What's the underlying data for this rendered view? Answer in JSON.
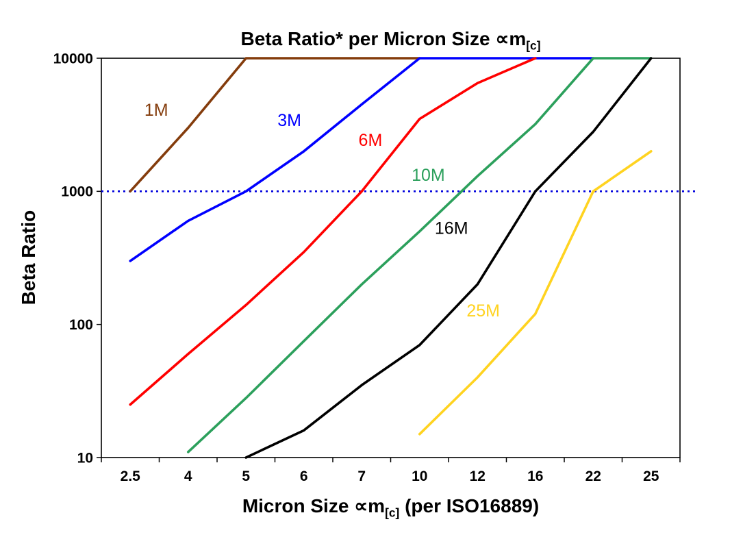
{
  "chart_data": {
    "type": "line",
    "title": {
      "text": "Beta Ratio* per Micron Size ∝m",
      "sub": "[c]"
    },
    "xlabel": {
      "prefix": "Micron Size ∝m",
      "sub": "[c]",
      "suffix": " (per ISO16889)"
    },
    "ylabel": "Beta Ratio",
    "x_categories": [
      2.5,
      4,
      5,
      6,
      7,
      10,
      12,
      16,
      22,
      25
    ],
    "y_scale": "log",
    "ylim": [
      10,
      10000
    ],
    "y_ticks": [
      10,
      100,
      1000,
      10000
    ],
    "grid": "off",
    "legend_position": "inline-labels",
    "reference_line": {
      "value": 1000,
      "color": "#0000DD",
      "style": "dotted"
    },
    "series": [
      {
        "name": "1M",
        "color": "#843C0C",
        "x": [
          2.5,
          4,
          5,
          6,
          7,
          10
        ],
        "values": [
          1000,
          3000,
          10000,
          10000,
          10000,
          10000
        ],
        "label": {
          "x_index": 0.45,
          "value": 3700
        }
      },
      {
        "name": "3M",
        "color": "#0000FF",
        "x": [
          2.5,
          4,
          5,
          6,
          7,
          10,
          12,
          16,
          22
        ],
        "values": [
          300,
          600,
          1000,
          2000,
          4500,
          10000,
          10000,
          10000,
          10000
        ],
        "label": {
          "x_index": 2.75,
          "value": 3100
        }
      },
      {
        "name": "6M",
        "color": "#FF0000",
        "x": [
          2.5,
          4,
          5,
          6,
          7,
          10,
          12,
          16
        ],
        "values": [
          25,
          60,
          140,
          350,
          1000,
          3500,
          6500,
          10000
        ],
        "label": {
          "x_index": 4.15,
          "value": 2200
        }
      },
      {
        "name": "10M",
        "color": "#2CA05C",
        "x": [
          4,
          5,
          6,
          7,
          10,
          12,
          16,
          22,
          25
        ],
        "values": [
          11,
          28,
          75,
          200,
          500,
          1300,
          3200,
          10000,
          10000
        ],
        "label": {
          "x_index": 5.15,
          "value": 1200
        }
      },
      {
        "name": "16M",
        "color": "#000000",
        "x": [
          5,
          6,
          7,
          10,
          12,
          16,
          22,
          25
        ],
        "values": [
          10,
          16,
          35,
          70,
          200,
          1000,
          2800,
          10000
        ],
        "label": {
          "x_index": 5.55,
          "value": 480
        }
      },
      {
        "name": "25M",
        "color": "#FFD320",
        "x": [
          10,
          12,
          16,
          22,
          25
        ],
        "values": [
          15,
          40,
          120,
          1000,
          2000
        ],
        "label": {
          "x_index": 6.1,
          "value": 115
        }
      }
    ]
  }
}
